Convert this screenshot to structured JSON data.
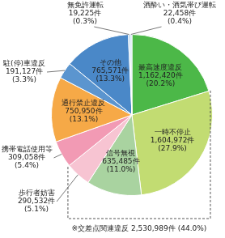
{
  "chart_data": {
    "type": "pie",
    "categories": [
      "最高速度違反",
      "一時不停止",
      "信号無視",
      "歩行者妨害",
      "携帯電話使用等",
      "通行禁止違反",
      "駐(停)車違反",
      "その他",
      "無免許運転",
      "酒酔い・酒気帯び運転"
    ],
    "values": [
      1162420,
      1604972,
      635485,
      290532,
      309058,
      750950,
      191127,
      765571,
      19225,
      22458
    ],
    "value_labels": [
      "1,162,420件",
      "1,604,972件",
      "635,485件",
      "290,532件",
      "309,058件",
      "750,950件",
      "191,127件",
      "765,571件",
      "19,225件",
      "22,458件"
    ],
    "percent_labels": [
      "(20.2%)",
      "(27.9%)",
      "(11.0%)",
      "(5.1%)",
      "(5.4%)",
      "(13.1%)",
      "(3.3%)",
      "(13.3%)",
      "(0.3%)",
      "(0.4%)"
    ],
    "colors": [
      "#4cb848",
      "#c2dc72",
      "#a9d3a0",
      "#f7c4d2",
      "#f29ab4",
      "#f6a947",
      "#5b95cf",
      "#4a88c8",
      "#8dbbe4",
      "#cfe3f3"
    ],
    "annotation": "※交差点関連違反 2,530,989件 (44.0%)",
    "data_labels": true
  }
}
